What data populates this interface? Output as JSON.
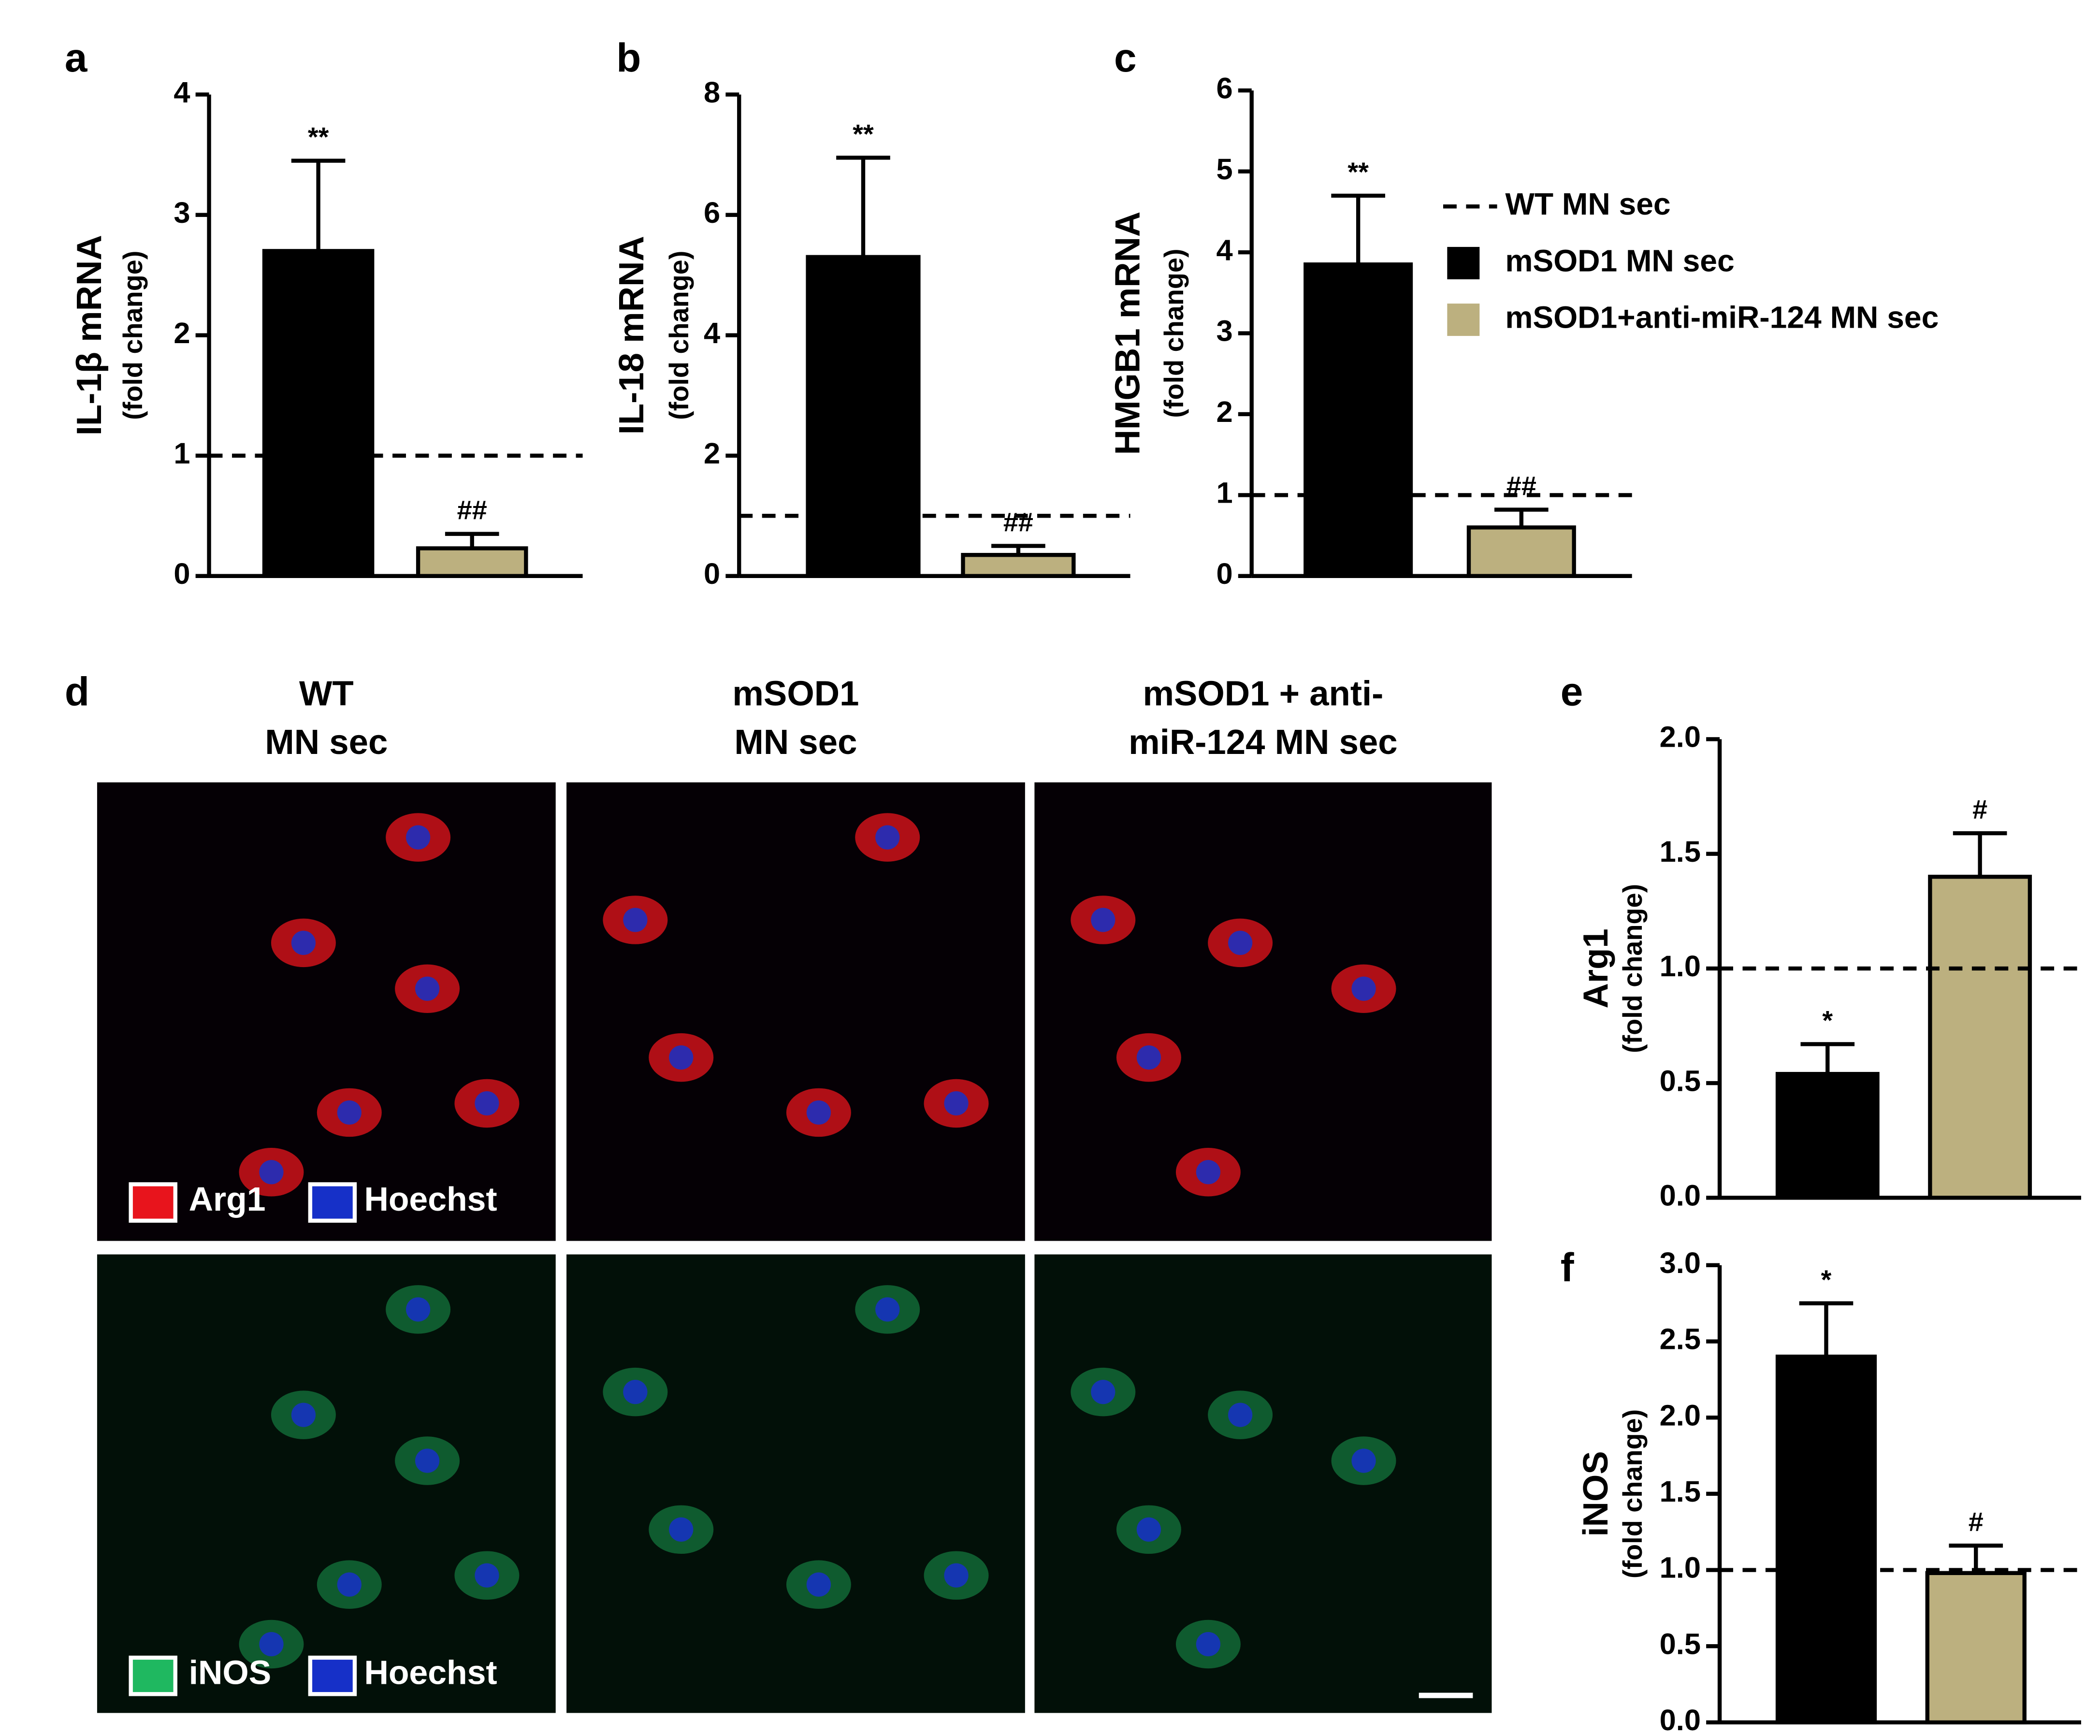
{
  "legend": {
    "entries": [
      {
        "name": "WT MN sec",
        "style": "dashed",
        "color": "#000000"
      },
      {
        "name": "mSOD1 MN sec",
        "color": "#000000"
      },
      {
        "name": "mSOD1+anti-miR-124 MN sec",
        "color": "#bcb07f"
      }
    ]
  },
  "chart_data": [
    {
      "type": "bar",
      "panel_label": "a",
      "ylabel": "IL-1β mRNA",
      "ylabel_sub": "(fold change)",
      "values": [
        2.7,
        0.23
      ],
      "errors": [
        0.75,
        0.12
      ],
      "annotations": [
        "**",
        "##"
      ],
      "reference_line": 1,
      "ylim": [
        0,
        4
      ],
      "yticks": [
        0,
        1,
        2,
        3,
        4
      ]
    },
    {
      "type": "bar",
      "panel_label": "b",
      "ylabel": "IL-18 mRNA",
      "ylabel_sub": "(fold change)",
      "values": [
        5.3,
        0.35
      ],
      "errors": [
        1.65,
        0.15
      ],
      "annotations": [
        "**",
        "##"
      ],
      "reference_line": 1,
      "ylim": [
        0,
        8
      ],
      "yticks": [
        0,
        2,
        4,
        6,
        8
      ]
    },
    {
      "type": "bar",
      "panel_label": "c",
      "ylabel": "HMGB1 mRNA",
      "ylabel_sub": "(fold change)",
      "values": [
        3.85,
        0.6
      ],
      "errors": [
        0.85,
        0.22
      ],
      "annotations": [
        "**",
        "##"
      ],
      "reference_line": 1,
      "ylim": [
        0,
        6
      ],
      "yticks": [
        0,
        1,
        2,
        3,
        4,
        5,
        6
      ]
    },
    {
      "type": "bar",
      "panel_label": "e",
      "ylabel": "Arg1",
      "ylabel_sub": "(fold change)",
      "values": [
        0.54,
        1.4
      ],
      "errors": [
        0.13,
        0.19
      ],
      "annotations": [
        "*",
        "#"
      ],
      "reference_line": 1,
      "ylim": [
        0,
        2
      ],
      "yticks": [
        {
          "value": 0,
          "label": "0.0"
        },
        {
          "value": 0.5,
          "label": "0.5"
        },
        {
          "value": 1,
          "label": "1.0"
        },
        {
          "value": 1.5,
          "label": "1.5"
        },
        {
          "value": 2,
          "label": "2.0"
        }
      ]
    },
    {
      "type": "bar",
      "panel_label": "f",
      "ylabel": "iNOS",
      "ylabel_sub": "(fold change)",
      "values": [
        2.4,
        0.98
      ],
      "errors": [
        0.35,
        0.18
      ],
      "annotations": [
        "*",
        "#"
      ],
      "reference_line": 1,
      "ylim": [
        0,
        3
      ],
      "yticks": [
        {
          "value": 0,
          "label": "0.0"
        },
        {
          "value": 0.5,
          "label": "0.5"
        },
        {
          "value": 1,
          "label": "1.0"
        },
        {
          "value": 1.5,
          "label": "1.5"
        },
        {
          "value": 2,
          "label": "2.0"
        },
        {
          "value": 2.5,
          "label": "2.5"
        },
        {
          "value": 3,
          "label": "3.0"
        }
      ]
    }
  ],
  "image_panel": {
    "panel_label": "d",
    "columns": [
      [
        "WT",
        "MN sec"
      ],
      [
        "mSOD1",
        "MN sec"
      ],
      [
        "mSOD1 + anti-",
        "miR-124 MN sec"
      ]
    ],
    "stains": [
      [
        {
          "name": "Arg1",
          "color": "#e8141c"
        },
        {
          "name": "Hoechst",
          "color": "#1630c8"
        }
      ],
      [
        {
          "name": "iNOS",
          "color": "#1fb860"
        },
        {
          "name": "Hoechst",
          "color": "#1630c8"
        }
      ]
    ]
  }
}
